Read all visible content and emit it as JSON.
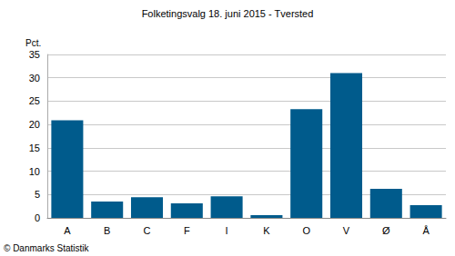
{
  "chart_data": {
    "type": "bar",
    "title": "Folketingsvalg 18. juni 2015 - Tversted",
    "ylabel": "Pct.",
    "categories": [
      "A",
      "B",
      "C",
      "F",
      "I",
      "K",
      "O",
      "V",
      "Ø",
      "Å"
    ],
    "values": [
      20.9,
      3.5,
      4.4,
      3.1,
      4.6,
      0.6,
      23.3,
      31.0,
      6.2,
      2.7
    ],
    "color": "#005b8c",
    "ylim": [
      0,
      35
    ],
    "yticks": [
      0,
      5,
      10,
      15,
      20,
      25,
      30,
      35
    ],
    "grid": true,
    "annotations": [
      "© Danmarks Statistik"
    ]
  }
}
